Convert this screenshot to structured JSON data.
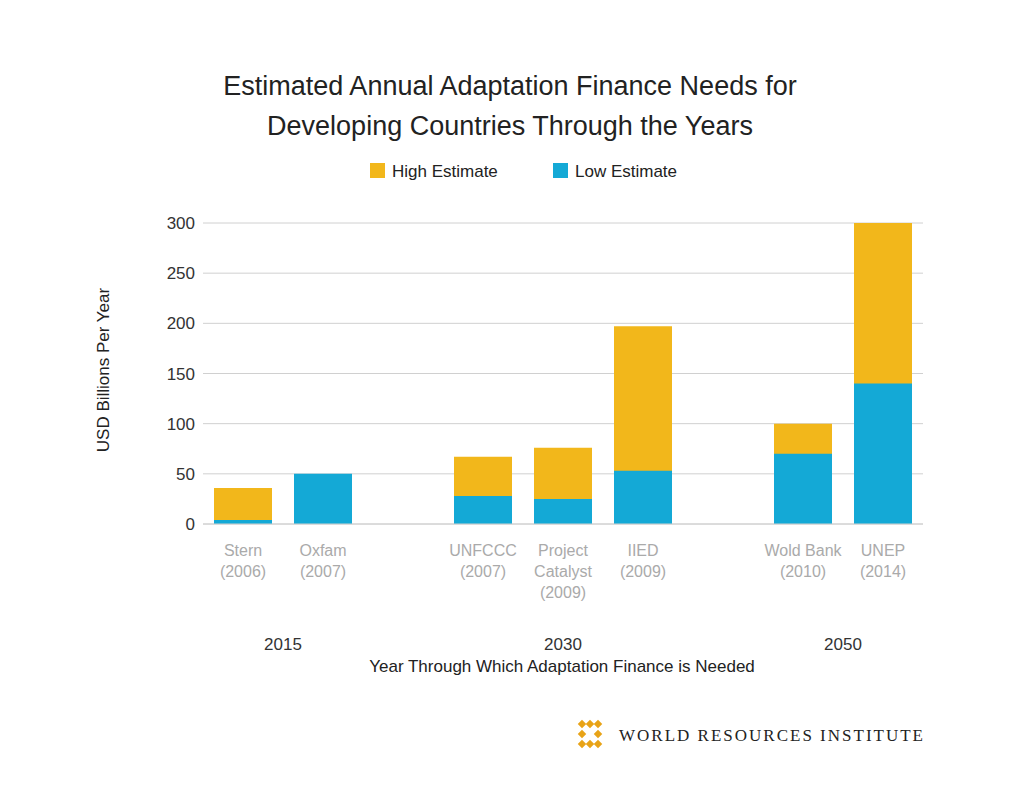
{
  "chart_data": {
    "type": "bar",
    "title": "Estimated Annual Adaptation Finance Needs for Developing Countries Through the Years",
    "categories": [
      "Stern (2006)",
      "Oxfam (2007)",
      null,
      "UNFCCC (2007)",
      "Project Catalyst (2009)",
      "IIED (2009)",
      null,
      "Wold Bank (2010)",
      "UNEP (2014)"
    ],
    "groups": [
      "2015",
      "2015",
      null,
      "2030",
      "2030",
      "2030",
      null,
      "2050",
      "2050"
    ],
    "series": [
      {
        "name": "High Estimate",
        "color": "#F2B71B",
        "values": [
          36,
          null,
          null,
          67,
          76,
          197,
          null,
          100,
          300
        ]
      },
      {
        "name": "Low Estimate",
        "color": "#14A9D6",
        "values": [
          4,
          50,
          null,
          28,
          25,
          53,
          null,
          70,
          140
        ]
      }
    ],
    "ylabel": "USD Billions Per Year",
    "xlabel": "Year Through Which Adaptation Finance is Needed",
    "ylim": [
      0,
      300
    ],
    "yticks": [
      0,
      50,
      100,
      150,
      200,
      250,
      300
    ],
    "grid": true,
    "legend": "top",
    "footer": "WORLD RESOURCES INSTITUTE"
  }
}
